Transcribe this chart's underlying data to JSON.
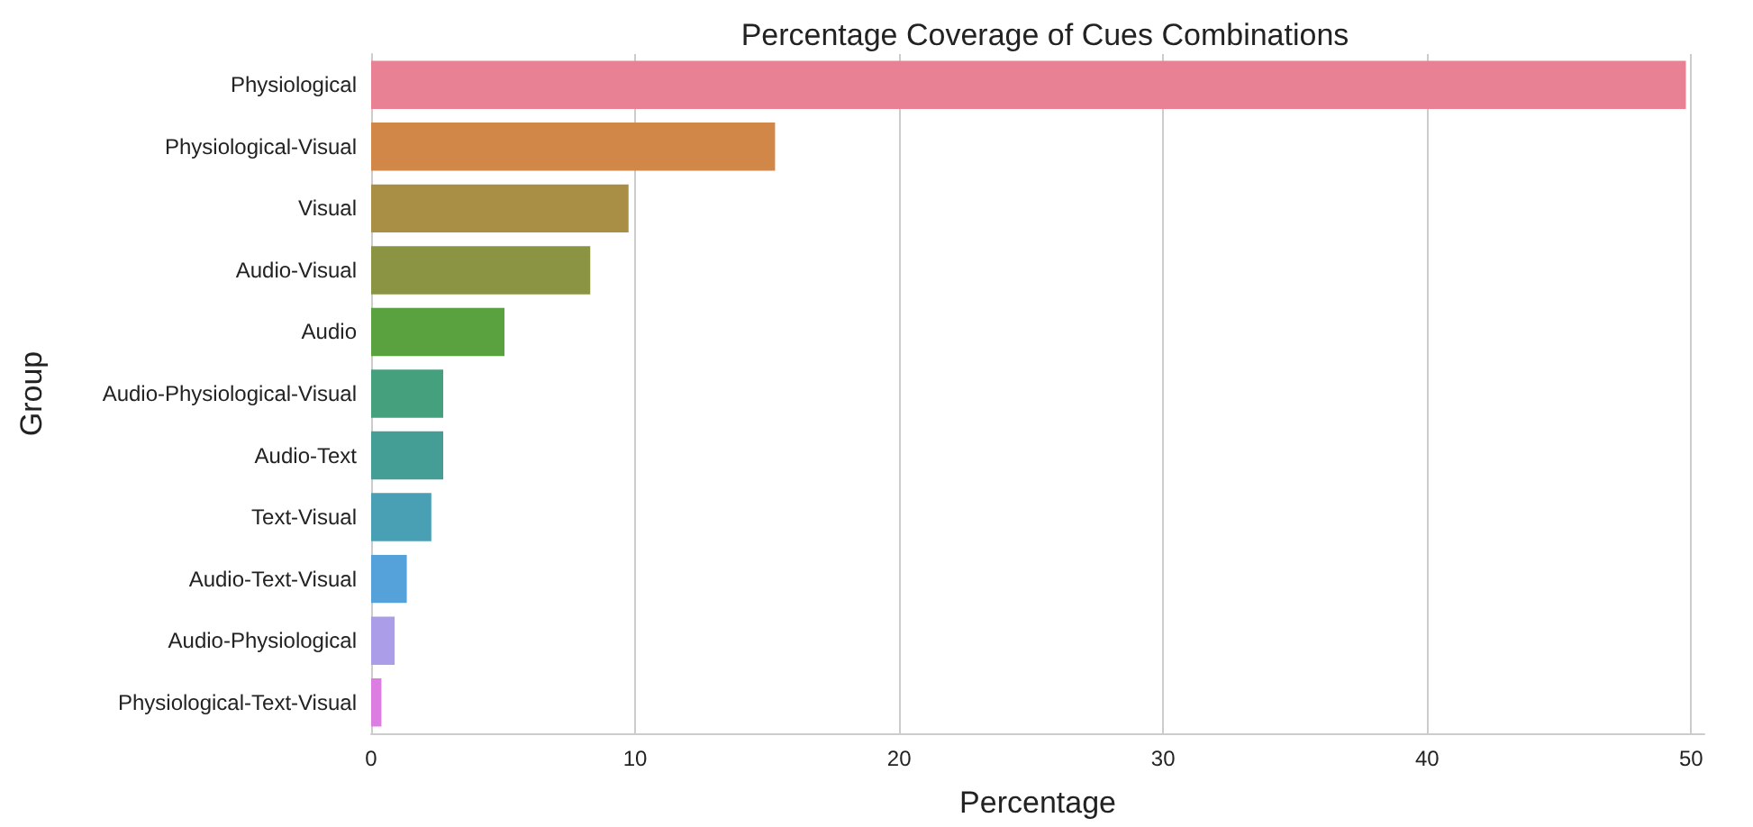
{
  "chart_data": {
    "type": "bar",
    "orientation": "horizontal",
    "title": "Percentage Coverage of Cues Combinations",
    "xlabel": "Percentage",
    "ylabel": "Group",
    "categories": [
      "Physiological",
      "Physiological-Visual",
      "Visual",
      "Audio-Visual",
      "Audio",
      "Audio-Physiological-Visual",
      "Audio-Text",
      "Text-Visual",
      "Audio-Text-Visual",
      "Audio-Physiological",
      "Physiological-Text-Visual"
    ],
    "values": [
      49.8,
      15.3,
      9.75,
      8.3,
      5.05,
      2.73,
      2.73,
      2.28,
      1.35,
      0.89,
      0.39
    ],
    "colors": [
      "#e88194",
      "#d08748",
      "#a98f45",
      "#8b9443",
      "#5aa140",
      "#45a07e",
      "#449e96",
      "#49a0b4",
      "#55a1d9",
      "#ab9de8",
      "#dc7ee1"
    ],
    "xlim": [
      0,
      50.5
    ],
    "xticks": [
      0,
      10,
      20,
      30,
      40,
      50
    ],
    "grid": "x"
  }
}
